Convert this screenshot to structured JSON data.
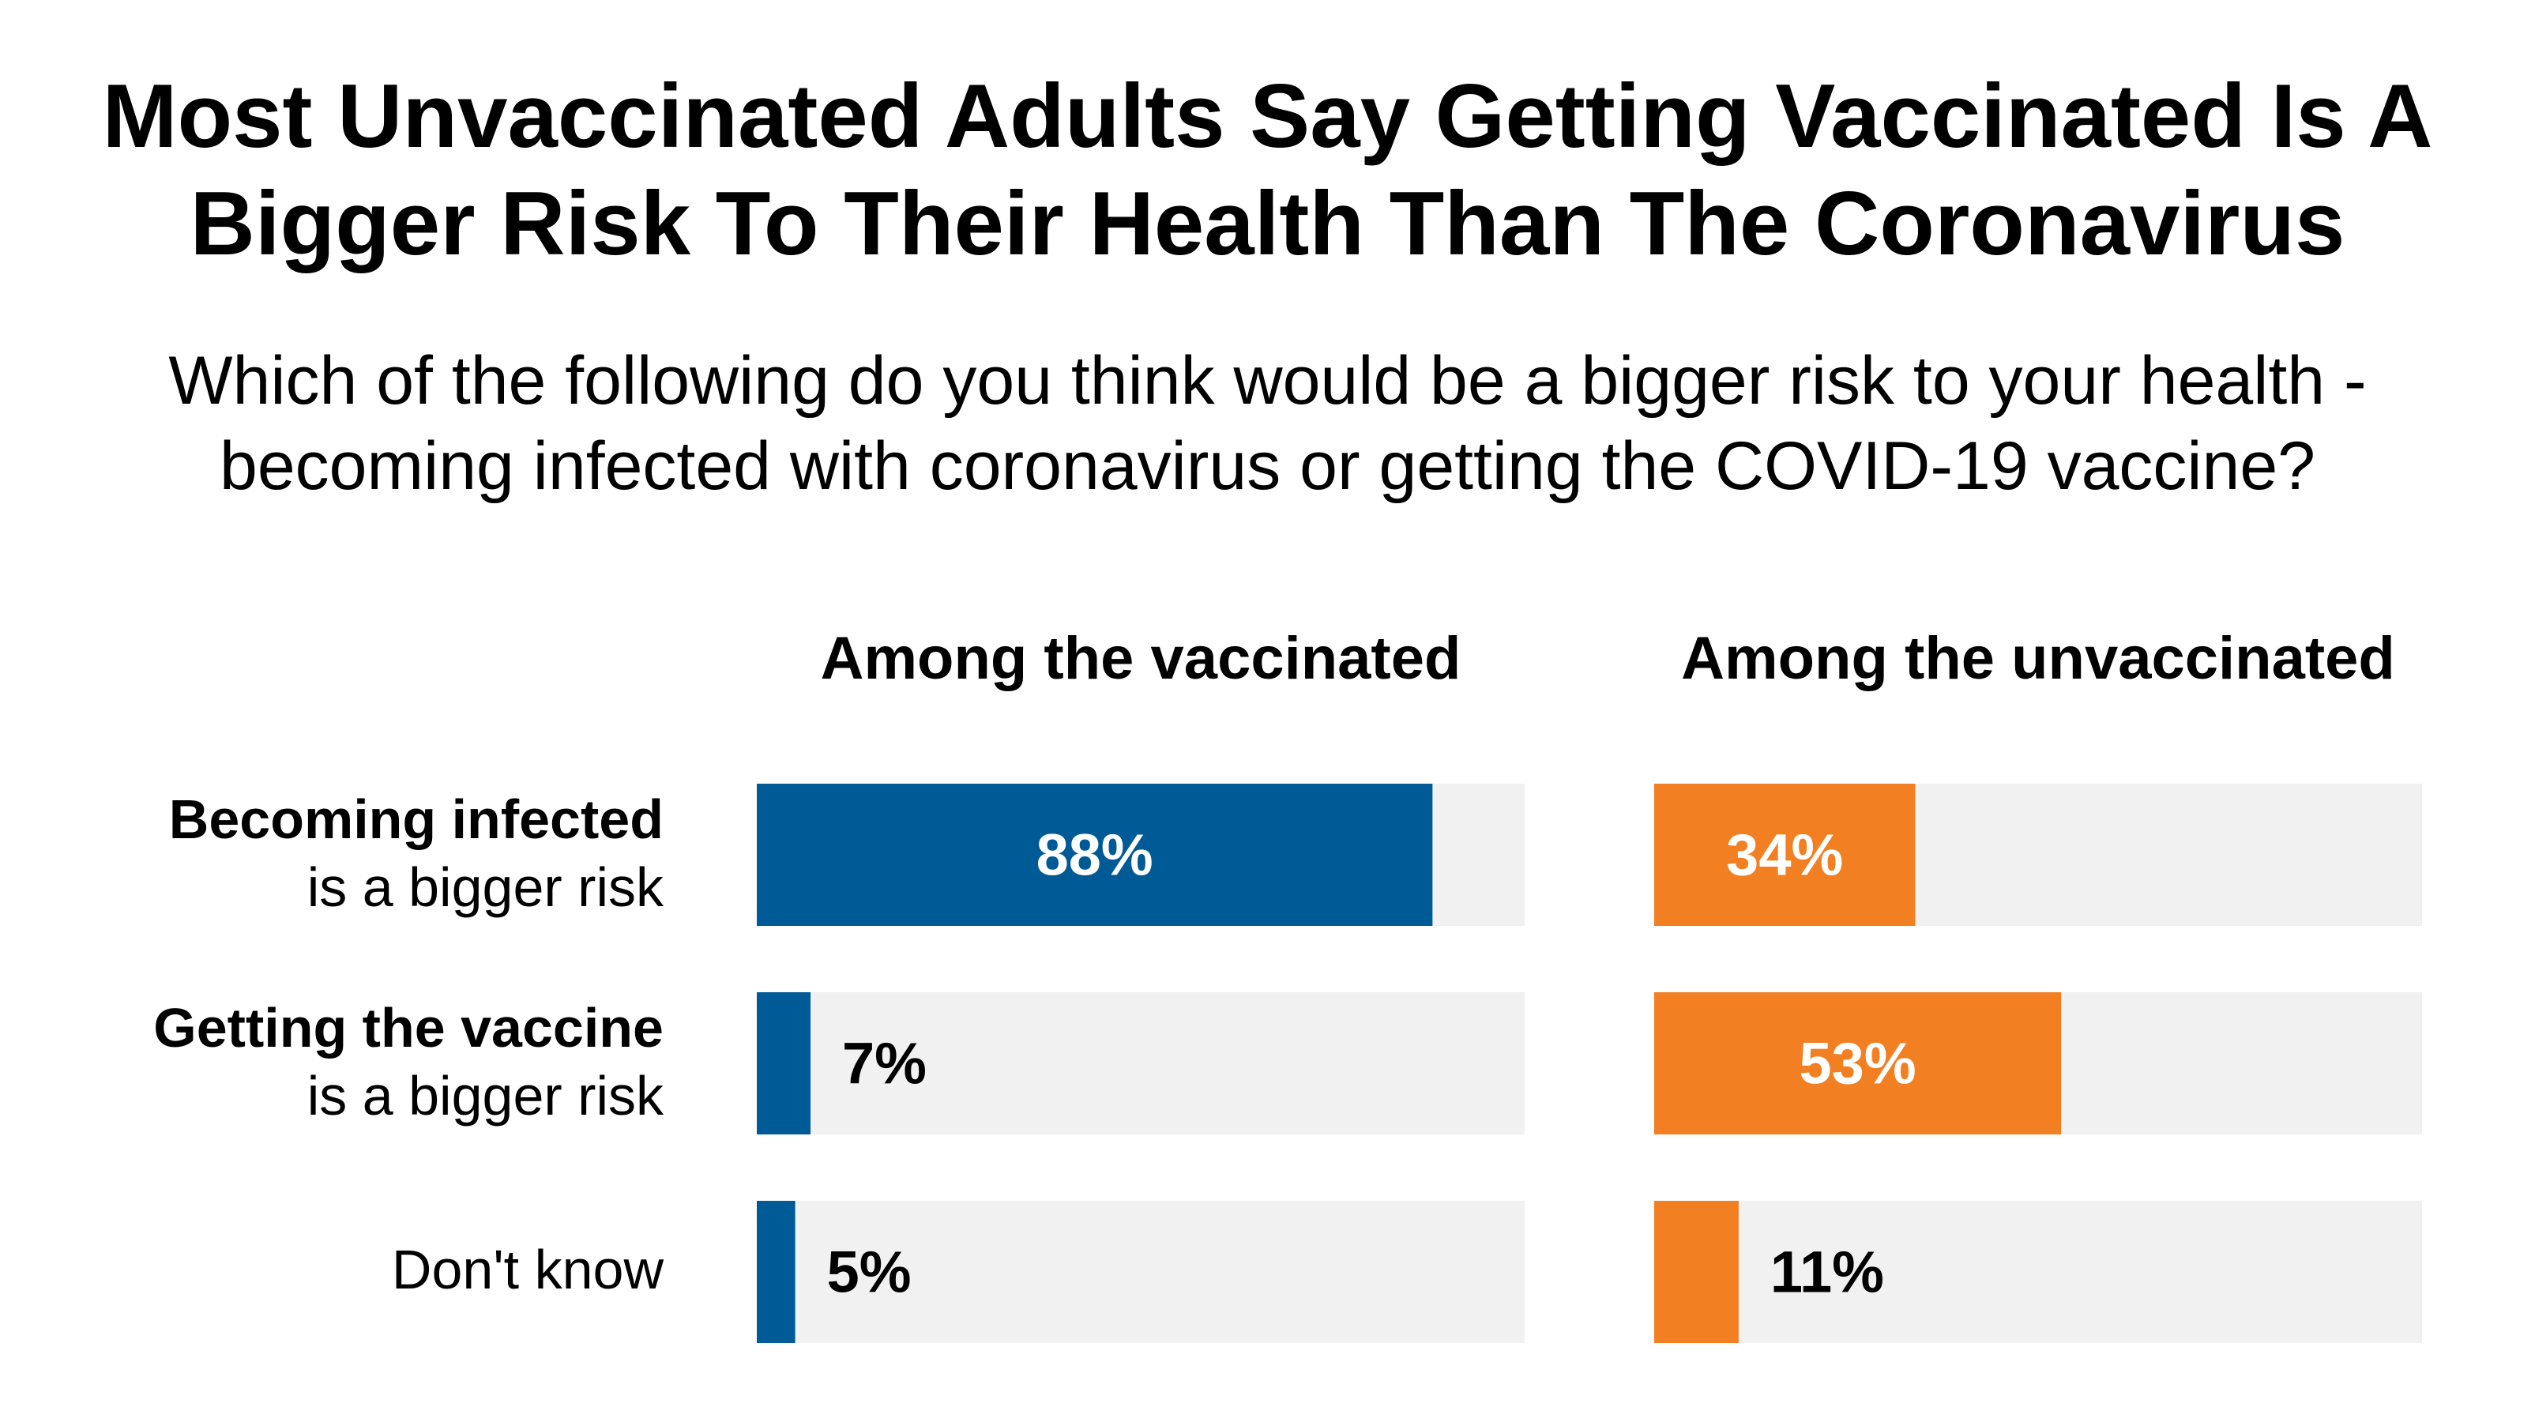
{
  "title_line1": "Most Unvaccinated Adults Say Getting Vaccinated Is A",
  "title_line2": "Bigger Risk To Their Health Than The Coronavirus",
  "subtitle_line1": "Which of the following do you think would be a bigger risk to your health -",
  "subtitle_line2": "becoming infected with coronavirus or getting the COVID-19 vaccine?",
  "chart_data": {
    "type": "bar",
    "orientation": "horizontal",
    "categories": [
      {
        "bold": "Becoming infected",
        "plain": "is a bigger risk"
      },
      {
        "bold": "Getting the vaccine",
        "plain": "is a bigger risk"
      },
      {
        "bold": "",
        "plain": "Don't know"
      }
    ],
    "series": [
      {
        "name": "Among the vaccinated",
        "color": "#005a96",
        "values": [
          88,
          7,
          5
        ],
        "labels": [
          "88%",
          "7%",
          "5%"
        ]
      },
      {
        "name": "Among the unvaccinated",
        "color": "#f28023",
        "values": [
          34,
          53,
          11
        ],
        "labels": [
          "34%",
          "53%",
          "11%"
        ]
      }
    ],
    "track_color": "#f1f1f1",
    "xlim": [
      0,
      100
    ],
    "unit": "%"
  }
}
